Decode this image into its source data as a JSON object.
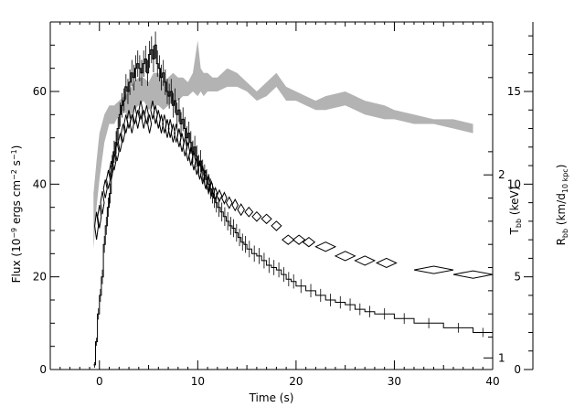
{
  "chart_data": {
    "type": "line",
    "xlabel": "Time (s)",
    "xlim": [
      -5,
      40
    ],
    "x_ticks": [
      0,
      10,
      20,
      30,
      40
    ],
    "left_axis": {
      "label_parts": [
        {
          "t": "Flux (10",
          "s": ""
        },
        {
          "t": "−9",
          "s": "sup"
        },
        {
          "t": " ergs cm",
          "s": ""
        },
        {
          "t": "−2",
          "s": "sup"
        },
        {
          "t": " s",
          "s": ""
        },
        {
          "t": "−1",
          "s": "sup"
        },
        {
          "t": ")",
          "s": ""
        }
      ],
      "ylim": [
        0,
        75
      ],
      "ticks": [
        0,
        20,
        40,
        60
      ]
    },
    "temperature_axis": {
      "label_parts": [
        {
          "t": "T",
          "s": ""
        },
        {
          "t": "bb",
          "s": "sub"
        },
        {
          "t": " (keV)",
          "s": ""
        }
      ],
      "ticks": [
        {
          "label": "1",
          "flux_equiv": 2.5
        },
        {
          "label": "2",
          "flux_equiv": 42.0
        }
      ]
    },
    "radius_axis": {
      "label_parts": [
        {
          "t": "R",
          "s": ""
        },
        {
          "t": "bb",
          "s": "sub"
        },
        {
          "t": " (km/d",
          "s": ""
        },
        {
          "t": "10 kpc",
          "s": "sub"
        },
        {
          "t": ")",
          "s": ""
        }
      ],
      "ylim": [
        0,
        18.75
      ],
      "ticks": [
        0,
        5,
        10,
        15
      ]
    },
    "series": [
      {
        "kind": "flux_step",
        "axis": "left",
        "x": [
          -0.6,
          -0.4,
          -0.2,
          0.0,
          0.2,
          0.4,
          0.6,
          0.8,
          1.0,
          1.2,
          1.4,
          1.6,
          1.8,
          2.0,
          2.2,
          2.4,
          2.6,
          2.8,
          3.0,
          3.2,
          3.4,
          3.6,
          3.8,
          4.0,
          4.2,
          4.4,
          4.6,
          4.8,
          5.0,
          5.2,
          5.4,
          5.6,
          5.8,
          6.0,
          6.2,
          6.4,
          6.6,
          6.8,
          7.0,
          7.2,
          7.4,
          7.6,
          7.8,
          8.0,
          8.2,
          8.4,
          8.6,
          8.8,
          9.0,
          9.2,
          9.4,
          9.6,
          9.8,
          10.0,
          10.2,
          10.4,
          10.6,
          10.8,
          11.0,
          11.2,
          11.4,
          11.6,
          11.8,
          12.0,
          12.3,
          12.6,
          12.9,
          13.2,
          13.5,
          13.8,
          14.1,
          14.4,
          14.7,
          15.0,
          15.5,
          16.0,
          16.5,
          17.0,
          17.5,
          18.0,
          18.5,
          19.0,
          19.5,
          20.0,
          21.0,
          22.0,
          23.0,
          24.0,
          25.0,
          26.0,
          27.0,
          28.0,
          30.0,
          32.0,
          35.0,
          38.0
        ],
        "y": [
          1,
          6,
          12,
          16,
          20,
          27,
          31,
          35,
          38,
          44,
          47,
          49,
          52,
          55,
          57,
          58,
          61,
          60,
          62,
          64,
          63,
          65,
          66,
          65,
          64,
          66,
          67,
          64,
          68,
          69,
          67,
          70,
          66,
          65,
          63,
          64,
          62,
          60,
          59,
          60,
          57,
          58,
          55,
          56,
          53,
          54,
          52,
          50,
          51,
          49,
          47,
          48,
          46,
          44,
          45,
          43,
          42,
          41,
          40,
          39,
          38,
          37,
          36,
          35,
          34,
          33,
          32,
          31,
          30.5,
          29.5,
          28.5,
          27.5,
          27,
          26,
          25,
          24.5,
          23.5,
          22.5,
          22,
          21.5,
          20.5,
          19.5,
          19,
          18,
          17,
          16,
          15,
          14.5,
          14,
          13,
          12.5,
          12,
          11,
          10,
          9,
          8
        ]
      },
      {
        "kind": "temperature_diamonds",
        "axis": "left",
        "x": [
          -0.3,
          0.0,
          0.3,
          0.6,
          0.9,
          1.2,
          1.5,
          1.8,
          2.1,
          2.4,
          2.7,
          3.0,
          3.3,
          3.6,
          3.9,
          4.2,
          4.5,
          4.8,
          5.1,
          5.4,
          5.7,
          6.0,
          6.3,
          6.6,
          6.9,
          7.2,
          7.5,
          7.8,
          8.1,
          8.4,
          8.7,
          9.0,
          9.3,
          9.6,
          9.9,
          10.2,
          10.5,
          10.8,
          11.1,
          11.4,
          11.8,
          12.2,
          12.7,
          13.2,
          13.8,
          14.4,
          15.2,
          16.0,
          17.0,
          18.0,
          19.2,
          20.3,
          21.3,
          23.0,
          25.0,
          27.0,
          29.2,
          34.0,
          38.0
        ],
        "y": [
          31,
          33,
          36,
          39,
          41,
          43,
          45,
          47,
          49,
          51,
          53,
          54,
          53,
          55,
          54,
          56,
          54,
          55,
          53,
          56,
          55,
          54,
          53,
          53,
          52,
          52,
          51,
          51,
          50,
          49,
          48,
          47,
          46,
          45,
          44,
          43,
          42,
          41,
          40,
          39,
          38,
          37.5,
          37,
          36,
          35.5,
          34.5,
          34,
          33,
          32.5,
          31,
          28,
          28,
          27.5,
          26.5,
          24.5,
          23.5,
          23,
          21.5,
          20.5
        ],
        "half_width": [
          0.15,
          0.15,
          0.15,
          0.15,
          0.15,
          0.15,
          0.15,
          0.15,
          0.15,
          0.15,
          0.15,
          0.15,
          0.15,
          0.15,
          0.15,
          0.15,
          0.15,
          0.15,
          0.15,
          0.15,
          0.15,
          0.15,
          0.15,
          0.15,
          0.15,
          0.15,
          0.15,
          0.15,
          0.15,
          0.15,
          0.15,
          0.15,
          0.15,
          0.15,
          0.15,
          0.15,
          0.15,
          0.15,
          0.15,
          0.2,
          0.2,
          0.25,
          0.25,
          0.3,
          0.3,
          0.35,
          0.4,
          0.45,
          0.5,
          0.5,
          0.6,
          0.6,
          0.6,
          1.0,
          1.0,
          1.0,
          1.0,
          2.0,
          2.0
        ],
        "half_height": [
          3,
          2.5,
          2.5,
          2,
          2,
          2,
          2,
          2,
          2,
          2,
          2,
          2,
          2,
          2,
          2,
          2,
          2,
          2,
          2,
          2,
          2,
          2,
          2,
          2,
          2,
          2,
          2,
          2,
          2,
          2,
          2,
          2,
          2,
          2,
          2,
          2,
          2,
          2,
          2,
          1.5,
          1.2,
          1.2,
          1.2,
          1.2,
          1.2,
          1.2,
          1.0,
          1.0,
          1.0,
          1.0,
          1.0,
          1.0,
          1.0,
          1.0,
          1.0,
          1.0,
          1.0,
          0.8,
          0.8
        ]
      },
      {
        "kind": "radius_band",
        "axis": "left",
        "x": [
          -0.6,
          -0.3,
          0.0,
          0.5,
          1.0,
          1.5,
          2.0,
          2.5,
          3.0,
          3.5,
          4.0,
          4.5,
          5.0,
          5.5,
          6.0,
          6.5,
          7.0,
          7.5,
          8.0,
          8.5,
          9.0,
          9.5,
          10.0,
          10.3,
          10.6,
          11.0,
          11.5,
          12.0,
          13.0,
          14.0,
          15.0,
          16.0,
          17.0,
          18.0,
          19.0,
          20.0,
          21.0,
          22.0,
          23.0,
          25.0,
          27.0,
          29.0,
          30.0,
          32.0,
          34.0,
          36.0,
          38.0
        ],
        "lower": [
          26,
          35,
          41,
          49,
          53,
          53,
          55,
          56,
          54,
          56,
          57,
          58,
          56,
          57,
          57,
          56,
          57,
          58,
          58,
          59,
          59,
          60,
          59,
          60,
          59,
          60,
          60,
          60,
          61,
          61,
          60,
          58,
          59,
          61,
          58,
          58,
          57,
          56,
          56,
          57,
          55,
          54,
          54,
          53,
          53,
          52,
          51
        ],
        "upper": [
          38,
          45,
          51,
          55,
          57,
          57,
          58,
          59,
          60,
          62,
          63,
          63,
          62,
          64,
          64,
          62,
          63,
          64,
          63,
          63,
          62,
          64,
          71,
          65,
          64,
          64,
          63,
          63,
          65,
          64,
          62,
          60,
          62,
          64,
          61,
          60,
          59,
          58,
          59,
          60,
          58,
          57,
          56,
          55,
          54,
          54,
          53
        ]
      }
    ]
  }
}
